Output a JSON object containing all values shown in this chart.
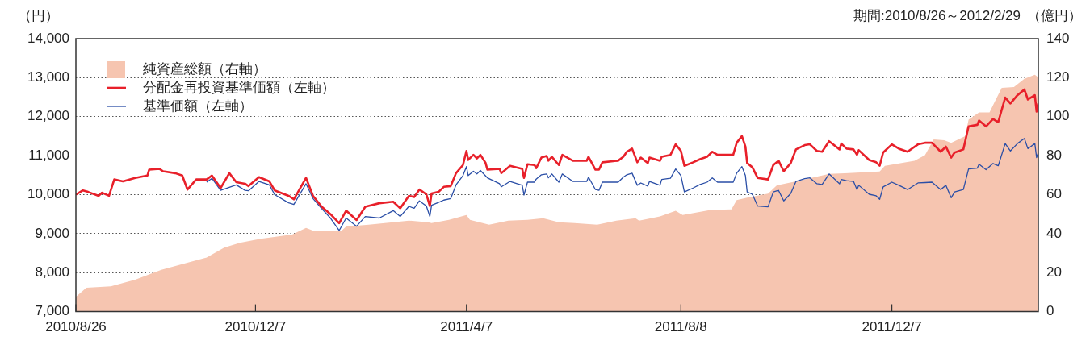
{
  "chart_data": {
    "type": "line",
    "subtitle": "期間:2010/8/26～2012/2/29",
    "ylabel": "（円）",
    "y2label": "（億円）",
    "x": [
      "2010-08-26",
      "2010-08-30",
      "2010-09-02",
      "2010-09-08",
      "2010-09-10",
      "2010-09-14",
      "2010-09-17",
      "2010-09-22",
      "2010-09-29",
      "2010-10-06",
      "2010-10-07",
      "2010-10-13",
      "2010-10-15",
      "2010-10-22",
      "2010-10-26",
      "2010-10-29",
      "2010-11-03",
      "2010-11-09",
      "2010-11-12",
      "2010-11-17",
      "2010-11-22",
      "2010-11-26",
      "2010-12-01",
      "2010-12-03",
      "2010-12-09",
      "2010-12-15",
      "2010-12-18",
      "2010-12-26",
      "2010-12-29",
      "2011-01-05",
      "2011-01-09",
      "2011-01-14",
      "2011-01-19",
      "2011-01-24",
      "2011-01-28",
      "2011-02-03",
      "2011-02-08",
      "2011-02-16",
      "2011-02-24",
      "2011-02-28",
      "2011-03-05",
      "2011-03-08",
      "2011-03-11",
      "2011-03-15",
      "2011-03-17",
      "2011-03-18",
      "2011-03-22",
      "2011-03-25",
      "2011-03-29",
      "2011-04-01",
      "2011-04-05",
      "2011-04-07",
      "2011-04-08",
      "2011-04-11",
      "2011-04-13",
      "2011-04-15",
      "2011-04-18",
      "2011-04-19",
      "2011-04-26",
      "2011-04-27",
      "2011-05-02",
      "2011-05-09",
      "2011-05-10",
      "2011-05-12",
      "2011-05-16",
      "2011-05-17",
      "2011-05-20",
      "2011-05-23",
      "2011-05-24",
      "2011-05-26",
      "2011-05-30",
      "2011-06-01",
      "2011-06-07",
      "2011-06-15",
      "2011-06-16",
      "2011-06-20",
      "2011-06-22",
      "2011-06-24",
      "2011-07-03",
      "2011-07-06",
      "2011-07-08",
      "2011-07-11",
      "2011-07-14",
      "2011-07-16",
      "2011-07-20",
      "2011-07-21",
      "2011-07-27",
      "2011-07-28",
      "2011-08-02",
      "2011-08-05",
      "2011-08-08",
      "2011-08-10",
      "2011-08-15",
      "2011-08-19",
      "2011-08-23",
      "2011-08-26",
      "2011-08-29",
      "2011-09-07",
      "2011-09-09",
      "2011-09-12",
      "2011-09-14",
      "2011-09-15",
      "2011-09-18",
      "2011-09-21",
      "2011-09-27",
      "2011-09-30",
      "2011-10-03",
      "2011-10-06",
      "2011-10-10",
      "2011-10-13",
      "2011-10-18",
      "2011-10-21",
      "2011-10-25",
      "2011-10-28",
      "2011-11-01",
      "2011-11-07",
      "2011-11-08",
      "2011-11-11",
      "2011-11-15",
      "2011-11-17",
      "2011-11-18",
      "2011-11-24",
      "2011-11-28",
      "2011-11-30",
      "2011-12-02",
      "2011-12-07",
      "2011-12-11",
      "2011-12-16",
      "2011-12-22",
      "2011-12-26",
      "2011-12-30",
      "2012-01-04",
      "2012-01-07",
      "2012-01-10",
      "2012-01-12",
      "2012-01-17",
      "2012-01-20",
      "2012-01-25",
      "2012-01-26",
      "2012-01-30",
      "2012-02-03",
      "2012-02-06",
      "2012-02-10",
      "2012-02-13",
      "2012-02-17",
      "2012-02-21",
      "2012-02-23",
      "2012-02-27",
      "2012-02-28",
      "2012-02-29"
    ],
    "series": [
      {
        "name": "純資産総額（右軸）",
        "type": "area",
        "axis": "y2",
        "color": "#f6c5b0",
        "x": [
          "2010-08-26",
          "2010-09-01",
          "2010-09-15",
          "2010-09-29",
          "2010-10-14",
          "2010-10-28",
          "2010-11-09",
          "2010-11-19",
          "2010-11-28",
          "2010-12-10",
          "2010-12-28",
          "2011-01-05",
          "2011-01-10",
          "2011-01-25",
          "2011-01-28",
          "2011-02-10",
          "2011-03-05",
          "2011-03-16",
          "2011-03-18",
          "2011-03-28",
          "2011-04-07",
          "2011-04-09",
          "2011-04-20",
          "2011-05-01",
          "2011-05-12",
          "2011-05-21",
          "2011-05-30",
          "2011-06-08",
          "2011-06-21",
          "2011-07-02",
          "2011-07-13",
          "2011-07-15",
          "2011-07-27",
          "2011-08-05",
          "2011-08-09",
          "2011-08-25",
          "2011-09-06",
          "2011-09-09",
          "2011-09-15",
          "2011-09-27",
          "2011-10-02",
          "2011-10-13",
          "2011-11-01",
          "2011-11-10",
          "2011-11-30",
          "2011-12-03",
          "2011-12-20",
          "2011-12-26",
          "2011-12-31",
          "2012-01-06",
          "2012-01-10",
          "2012-01-18",
          "2012-01-20",
          "2012-01-26",
          "2012-02-01",
          "2012-02-04",
          "2012-02-08",
          "2012-02-15",
          "2012-02-21",
          "2012-02-27",
          "2012-02-29"
        ],
        "values": [
          7.6,
          12.2,
          13.0,
          16.4,
          21.4,
          24.8,
          27.7,
          32.8,
          35.3,
          37.4,
          39.5,
          42.9,
          41.2,
          41.2,
          43.7,
          44.6,
          46.7,
          45.8,
          45.4,
          47.1,
          49.6,
          47.1,
          44.6,
          46.7,
          47.1,
          47.9,
          45.8,
          45.4,
          44.6,
          46.7,
          47.9,
          46.7,
          48.8,
          51.7,
          49.6,
          52.1,
          52.5,
          57.2,
          58.4,
          60.5,
          64.7,
          66.8,
          70.6,
          71.0,
          71.9,
          74.8,
          77.4,
          80.3,
          88.3,
          87.9,
          86.6,
          90.0,
          98.4,
          102.2,
          102.2,
          107.6,
          114.8,
          115.2,
          119.4,
          121.5,
          120.2
        ]
      },
      {
        "name": "分配金再投資基準価額（左軸）",
        "color": "#e8202a",
        "values": [
          10000,
          10110,
          10070,
          9970,
          10050,
          9970,
          10390,
          10340,
          10430,
          10490,
          10640,
          10660,
          10600,
          10550,
          10490,
          10130,
          10390,
          10390,
          10490,
          10170,
          10550,
          10320,
          10280,
          10220,
          10450,
          10340,
          10110,
          9970,
          9880,
          10430,
          9970,
          9690,
          9500,
          9270,
          9590,
          9350,
          9690,
          9780,
          9820,
          9650,
          9970,
          9940,
          10130,
          10010,
          9710,
          10030,
          10070,
          10200,
          10220,
          10550,
          10760,
          11120,
          10890,
          11020,
          10930,
          11020,
          10810,
          10640,
          10660,
          10550,
          10740,
          10660,
          10430,
          10780,
          10760,
          10680,
          10950,
          10990,
          10870,
          10970,
          10760,
          11020,
          10870,
          10870,
          10970,
          10640,
          10640,
          10830,
          10870,
          10970,
          11100,
          11180,
          10830,
          10950,
          10810,
          10950,
          10870,
          10970,
          11020,
          11290,
          11120,
          10740,
          10830,
          10910,
          10970,
          11100,
          11020,
          11020,
          11330,
          11500,
          11230,
          10810,
          10700,
          10430,
          10390,
          10760,
          10870,
          10600,
          10810,
          11160,
          11270,
          11290,
          11120,
          11100,
          11370,
          11160,
          11310,
          11180,
          11160,
          11020,
          11140,
          10890,
          10830,
          10740,
          11080,
          11290,
          11180,
          11100,
          11290,
          11330,
          11330,
          11100,
          11230,
          10950,
          11080,
          11160,
          11750,
          11790,
          11900,
          11750,
          11940,
          11860,
          12490,
          12340,
          12550,
          12700,
          12440,
          12550,
          12130,
          12340
        ]
      },
      {
        "name": "基準価額（左軸）",
        "color": "#2a4ea6",
        "values": [
          null,
          null,
          null,
          null,
          null,
          null,
          null,
          null,
          null,
          null,
          null,
          null,
          null,
          null,
          null,
          null,
          null,
          10320,
          10420,
          10110,
          null,
          10250,
          10110,
          10100,
          10340,
          10250,
          10000,
          9790,
          9750,
          10280,
          9900,
          9640,
          9400,
          9080,
          9400,
          9190,
          9440,
          9400,
          9590,
          9440,
          9700,
          9650,
          9840,
          9710,
          9440,
          9730,
          9800,
          9860,
          9900,
          10250,
          10490,
          10720,
          10490,
          10600,
          10530,
          10620,
          10480,
          10430,
          10280,
          10200,
          10340,
          10240,
          9990,
          10320,
          10320,
          10400,
          10510,
          10530,
          10430,
          10530,
          10320,
          10530,
          10340,
          10340,
          10450,
          10130,
          10110,
          10320,
          10320,
          10450,
          10510,
          10550,
          10240,
          10300,
          10220,
          10340,
          10240,
          10390,
          10420,
          10660,
          10490,
          10070,
          10170,
          10260,
          10320,
          10430,
          10320,
          10320,
          10550,
          10720,
          10490,
          10070,
          10010,
          9710,
          9690,
          10070,
          10110,
          9840,
          10030,
          10340,
          10410,
          10430,
          10280,
          10260,
          10530,
          10280,
          10390,
          10360,
          10340,
          10130,
          10240,
          10010,
          9970,
          9880,
          10200,
          10320,
          10240,
          10130,
          10300,
          10310,
          10320,
          10130,
          10240,
          9920,
          10070,
          10130,
          10660,
          10680,
          10780,
          10640,
          10800,
          10740,
          11310,
          11120,
          11310,
          11440,
          11180,
          11310,
          10950,
          11080
        ]
      }
    ],
    "xlim": [
      "2010-08-26",
      "2012-02-29"
    ],
    "xticks": [
      {
        "value": "2010-08-26",
        "label": "2010/8/26"
      },
      {
        "value": "2010-12-07",
        "label": "2010/12/7"
      },
      {
        "value": "2011-04-07",
        "label": "2011/4/7"
      },
      {
        "value": "2011-08-08",
        "label": "2011/8/8"
      },
      {
        "value": "2011-12-07",
        "label": "2011/12/7"
      }
    ],
    "ylim": [
      7000,
      14000
    ],
    "yticks": [
      {
        "value": 7000,
        "label": "7,000"
      },
      {
        "value": 8000,
        "label": "8,000"
      },
      {
        "value": 9000,
        "label": "9,000"
      },
      {
        "value": 10000,
        "label": "10,000"
      },
      {
        "value": 11000,
        "label": "11,000"
      },
      {
        "value": 12000,
        "label": "12,000"
      },
      {
        "value": 13000,
        "label": "13,000"
      },
      {
        "value": 14000,
        "label": "14,000"
      }
    ],
    "y2lim": [
      0,
      140
    ],
    "y2ticks": [
      0,
      20,
      40,
      60,
      80,
      100,
      120,
      140
    ],
    "grid": "y",
    "legend": "top left",
    "marker": "none",
    "line_style": "solid"
  }
}
